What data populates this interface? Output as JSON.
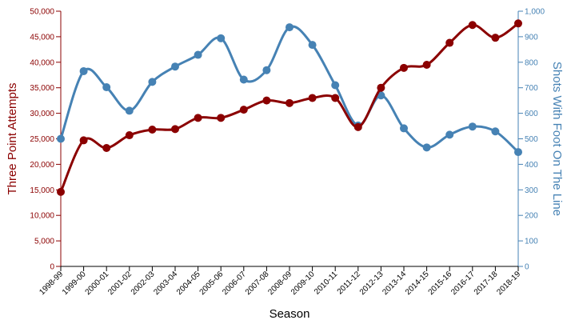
{
  "chart_data": {
    "type": "line",
    "xlabel": "Season",
    "categories": [
      "1998-99",
      "1999-00",
      "2000-01",
      "2001-02",
      "2002-03",
      "2003-04",
      "2004-05",
      "2005-06",
      "2006-07",
      "2007-08",
      "2008-09",
      "2009-10",
      "2010-11",
      "2011-12",
      "2012-13",
      "2013-14",
      "2014-15",
      "2015-16",
      "2016-17",
      "2017-18",
      "2018-19"
    ],
    "y_left": {
      "label": "Three Point Attempts",
      "ylim": [
        0,
        50000
      ],
      "ticks": [
        0,
        5000,
        10000,
        15000,
        20000,
        25000,
        30000,
        35000,
        40000,
        45000,
        50000
      ],
      "tick_labels": [
        "0",
        "5,000",
        "10,000",
        "15,000",
        "20,000",
        "25,000",
        "30,000",
        "35,000",
        "40,000",
        "45,000",
        "50,000"
      ],
      "color": "#8b0000"
    },
    "y_right": {
      "label": "Shots With Foot On The Line",
      "ylim": [
        0,
        1000
      ],
      "ticks": [
        0,
        100,
        200,
        300,
        400,
        500,
        600,
        700,
        800,
        900,
        1000
      ],
      "tick_labels": [
        "0",
        "100",
        "200",
        "300",
        "400",
        "500",
        "600",
        "700",
        "800",
        "900",
        "1,000"
      ],
      "color": "#4682b4"
    },
    "series": [
      {
        "axis": "left",
        "color": "#8b0000",
        "values": [
          14600,
          24700,
          23200,
          25700,
          26800,
          26900,
          29100,
          29100,
          30700,
          32500,
          32000,
          33000,
          33000,
          27300,
          35000,
          38900,
          39500,
          43800,
          47300,
          44800,
          47600
        ]
      },
      {
        "axis": "right",
        "color": "#4682b4",
        "values": [
          500,
          765,
          702,
          610,
          723,
          783,
          829,
          894,
          732,
          769,
          937,
          868,
          710,
          552,
          670,
          541,
          466,
          516,
          548,
          529,
          448
        ]
      }
    ],
    "grid": false,
    "legend": "none"
  }
}
